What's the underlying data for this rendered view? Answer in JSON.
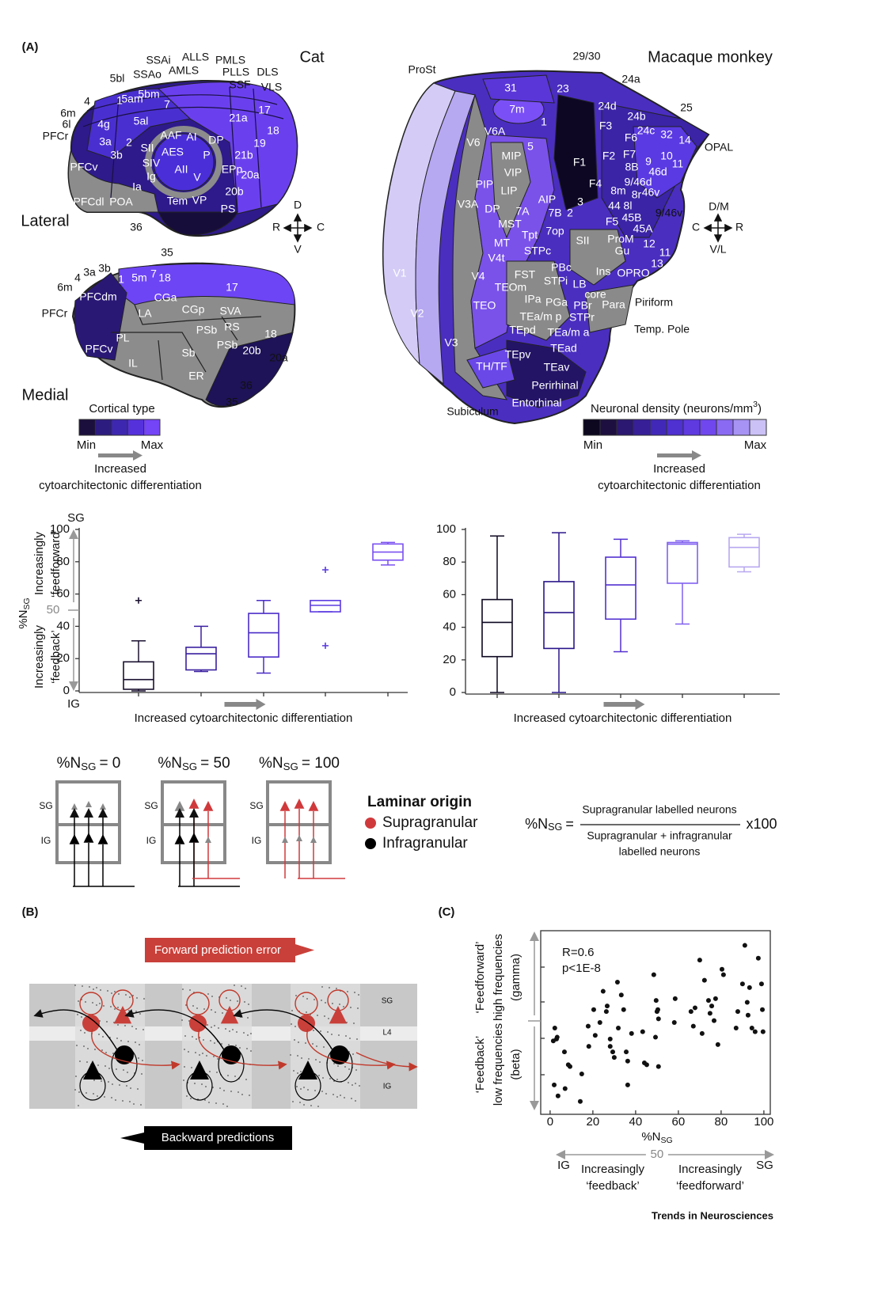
{
  "panel_a": {
    "label": "(A)"
  },
  "cat": {
    "title": "Cat",
    "lateral": "Lateral",
    "medial": "Medial",
    "lateral_areas": [
      "SSAi",
      "ALLS",
      "PMLS",
      "SSAo",
      "AMLS",
      "PLLS",
      "DLS",
      "5bl",
      "SSF",
      "VLS",
      "5bm",
      "5am",
      "4",
      "1",
      "7",
      "17",
      "6m",
      "21a",
      "4g",
      "6l",
      "5al",
      "18",
      "PFCr",
      "3a",
      "AAF",
      "AI",
      "DP",
      "19",
      "2",
      "SII",
      "AES",
      "21b",
      "3b",
      "P",
      "SIV",
      "EPp",
      "PFCv",
      "20a",
      "AII",
      "Ig",
      "V",
      "Ia",
      "20b",
      "PFCdl",
      "POA",
      "Tem",
      "VP",
      "PS",
      "36",
      "35"
    ],
    "medial_areas": [
      "3b",
      "3a",
      "4",
      "6m",
      "1",
      "5m",
      "7",
      "18",
      "17",
      "PFCr",
      "CGa",
      "LA",
      "CGp",
      "SVA",
      "PFCdm",
      "RS",
      "PL",
      "PSb",
      "18",
      "PFCv",
      "PSb",
      "20b",
      "20a",
      "IL",
      "Sb",
      "ER",
      "36",
      "35"
    ],
    "orientation": [
      "D",
      "R",
      "C",
      "V"
    ],
    "legend": {
      "title": "Cortical type",
      "min": "Min",
      "max": "Max",
      "colors": [
        "#1b0f3d",
        "#2d1c80",
        "#3e27b0",
        "#5531dc",
        "#7444f7"
      ],
      "caption": [
        "Increased",
        "cytoarchitectonic differentiation"
      ]
    }
  },
  "macaque": {
    "title": "Macaque monkey",
    "areas": [
      "29/30",
      "ProSt",
      "24a",
      "31",
      "23",
      "7m",
      "24d",
      "25",
      "24b",
      "1",
      "V6A",
      "F3",
      "24c",
      "32",
      "F6",
      "14",
      "OPAL",
      "V6",
      "5",
      "MIP",
      "F2",
      "F7",
      "10",
      "9",
      "F1",
      "11",
      "8B",
      "46d",
      "VIP",
      "9/46d",
      "PIP",
      "LIP",
      "F4",
      "8r",
      "8m",
      "46v",
      "AIP",
      "3",
      "V3A",
      "DP",
      "7A",
      "7B",
      "2",
      "44",
      "8l",
      "9/46v",
      "F5",
      "45B",
      "MST",
      "Tpt",
      "7op",
      "45A",
      "SII",
      "ProM",
      "12",
      "MT",
      "STPc",
      "Gu",
      "11",
      "V4t",
      "13",
      "PBc",
      "Ins",
      "OPRO",
      "V1",
      "V4",
      "FST",
      "STPi",
      "LB",
      "TEOm",
      "core",
      "IPa",
      "PGa",
      "PBr",
      "Para",
      "Piriform",
      "TEO",
      "TEa/m p",
      "STPr",
      "V2",
      "TEpd",
      "TEa/m a",
      "Temp. Pole",
      "V3",
      "TEad",
      "TEpv",
      "TH/TF",
      "TEav",
      "Perirhinal",
      "Entorhinal",
      "Subiculum"
    ],
    "orientation": [
      "D/M",
      "C",
      "R",
      "V/L"
    ],
    "legend": {
      "title": "Neuronal density (neurons/mm",
      "title_sup": "3",
      "title_end": ")",
      "min": "Min",
      "max": "Max",
      "colors": [
        "#0d0720",
        "#1d1040",
        "#2b1870",
        "#371f98",
        "#4228b8",
        "#4f30d0",
        "#5e3ae0",
        "#7047ee",
        "#8a6af2",
        "#a793f3",
        "#cbc1f6"
      ],
      "caption": [
        "Increased",
        "cytoarchitectonic differentiation"
      ]
    }
  },
  "chart_data": [
    {
      "type": "box",
      "ylim": [
        0,
        100
      ],
      "yticks": [
        0,
        20,
        40,
        60,
        80,
        100
      ],
      "xlabel": "Increased cytoarchitectonic differentiation",
      "ylabel": "%N",
      "ylabel_sub": "SG",
      "midline": {
        "value": 50,
        "label": "50"
      },
      "top_label": "SG",
      "bottom_label": "IG",
      "upper_note": [
        "Increasingly",
        "‘feedforward’"
      ],
      "lower_note": [
        "Increasingly",
        "‘feedback’"
      ],
      "boxes": [
        {
          "color": "#1a1030",
          "min": 0,
          "q1": 1,
          "median": 7,
          "q3": 18,
          "max": 31,
          "outliers": [
            56
          ]
        },
        {
          "color": "#3a20a0",
          "min": 12,
          "q1": 13,
          "median": 23,
          "q3": 27,
          "max": 40,
          "outliers": []
        },
        {
          "color": "#4a2cc8",
          "min": 11,
          "q1": 21,
          "median": 36,
          "q3": 48,
          "max": 56,
          "outliers": []
        },
        {
          "color": "#5a3ae0",
          "min": 49,
          "q1": 49,
          "median": 53,
          "q3": 56,
          "max": 56,
          "outliers": [
            75,
            28
          ]
        },
        {
          "color": "#7a50f0",
          "min": 78,
          "q1": 81,
          "median": 86,
          "q3": 91,
          "max": 92,
          "outliers": []
        }
      ]
    },
    {
      "type": "box",
      "ylim": [
        0,
        100
      ],
      "yticks": [
        0,
        20,
        40,
        60,
        80,
        100
      ],
      "xlabel": "Increased cytoarchitectonic differentiation",
      "boxes": [
        {
          "color": "#0d0720",
          "min": 0,
          "q1": 22,
          "median": 43,
          "q3": 57,
          "max": 96,
          "outliers": []
        },
        {
          "color": "#2a168a",
          "min": 0,
          "q1": 27,
          "median": 49,
          "q3": 68,
          "max": 98,
          "outliers": []
        },
        {
          "color": "#5230d0",
          "min": 25,
          "q1": 45,
          "median": 66,
          "q3": 83,
          "max": 94,
          "outliers": []
        },
        {
          "color": "#8060f0",
          "min": 42,
          "q1": 67,
          "median": 91,
          "q3": 92,
          "max": 93,
          "outliers": []
        },
        {
          "color": "#b8a8f0",
          "min": 74,
          "q1": 77,
          "median": 89,
          "q3": 95,
          "max": 97,
          "outliers": []
        }
      ]
    },
    {
      "type": "scatter",
      "color": "#111111",
      "xlim": [
        -4.4,
        103
      ],
      "xticks": [
        0,
        20,
        40,
        60,
        80,
        100
      ],
      "ylim": [
        0,
        100
      ],
      "x": [
        2.2,
        3.0,
        1.5,
        3.3,
        6.7,
        9.3,
        8.5,
        1.9,
        3.7,
        7.0,
        14.8,
        14.1,
        17.8,
        18.1,
        20.4,
        21.1,
        23.3,
        24.8,
        26.3,
        26.7,
        28.1,
        29.3,
        30.0,
        28.1,
        31.5,
        31.9,
        33.3,
        34.4,
        35.6,
        36.3,
        36.3,
        38.1,
        43.3,
        44.1,
        45.2,
        48.5,
        49.3,
        49.6,
        50.0,
        50.4,
        50.7,
        50.7,
        58.1,
        58.5,
        65.9,
        67.0,
        67.8,
        70.0,
        71.1,
        72.2,
        74.1,
        74.8,
        75.6,
        76.7,
        77.4,
        78.5,
        80.4,
        81.1,
        87.0,
        87.8,
        90.0,
        91.1,
        92.2,
        92.6,
        93.3,
        94.4,
        95.9,
        97.4,
        98.9,
        99.3,
        99.6
      ],
      "y": [
        47,
        41,
        40,
        42,
        34,
        26,
        27,
        16,
        10,
        14,
        22,
        7,
        48,
        37,
        57,
        43,
        50,
        67,
        56,
        59,
        37,
        34,
        31,
        41,
        72,
        47,
        65,
        57,
        34,
        29,
        16,
        44,
        45,
        28,
        27,
        76,
        42,
        62,
        56,
        57,
        52,
        26,
        50,
        63,
        56,
        48,
        58,
        84,
        44,
        73,
        62,
        55,
        59,
        51,
        63,
        38,
        79,
        76,
        47,
        56,
        71,
        92,
        61,
        54,
        69,
        47,
        45,
        85,
        71,
        57,
        45
      ],
      "xlabel": "%N",
      "xlabel_sub": "SG",
      "annotations": [
        "R=0.6",
        "p<1E-8"
      ],
      "y_upper": [
        "‘Feedforward’",
        "high frequencies",
        "(gamma)"
      ],
      "y_lower": [
        "‘Feedback’",
        "low frequencies",
        "(beta)"
      ],
      "bottom_axis": {
        "mid": {
          "value": 50,
          "label": "50"
        },
        "left": "IG",
        "right": "SG",
        "left_note": [
          "Increasingly",
          "‘feedback’"
        ],
        "right_note": [
          "Increasingly",
          "‘feedforward’"
        ]
      }
    }
  ],
  "schematic": {
    "panels": [
      {
        "title": "%N",
        "title_sub": "SG",
        "title_rest": "= 0"
      },
      {
        "title": "%N",
        "title_sub": "SG",
        "title_rest": "= 50"
      },
      {
        "title": "%N",
        "title_sub": "SG",
        "title_rest": "= 100"
      }
    ],
    "sg": "SG",
    "ig": "IG",
    "legend": {
      "title": "Laminar origin",
      "items": [
        {
          "label": "Supragranular",
          "color": "#d0393b"
        },
        {
          "label": "Infragranular",
          "color": "#000000"
        }
      ]
    },
    "formula": {
      "lhs": "%N",
      "lhs_sub": "SG",
      "eq": "=",
      "numerator": "Supragranular labelled neurons",
      "denominator": [
        "Supragranular + infragranular",
        "labelled neurons"
      ],
      "factor": "x100"
    }
  },
  "panel_b": {
    "label": "(B)",
    "forward": "Forward prediction error",
    "backward": "Backward predictions",
    "layers": [
      "SG",
      "L4",
      "IG"
    ]
  },
  "panel_c": {
    "label": "(C)"
  },
  "footer": "Trends in Neurosciences"
}
